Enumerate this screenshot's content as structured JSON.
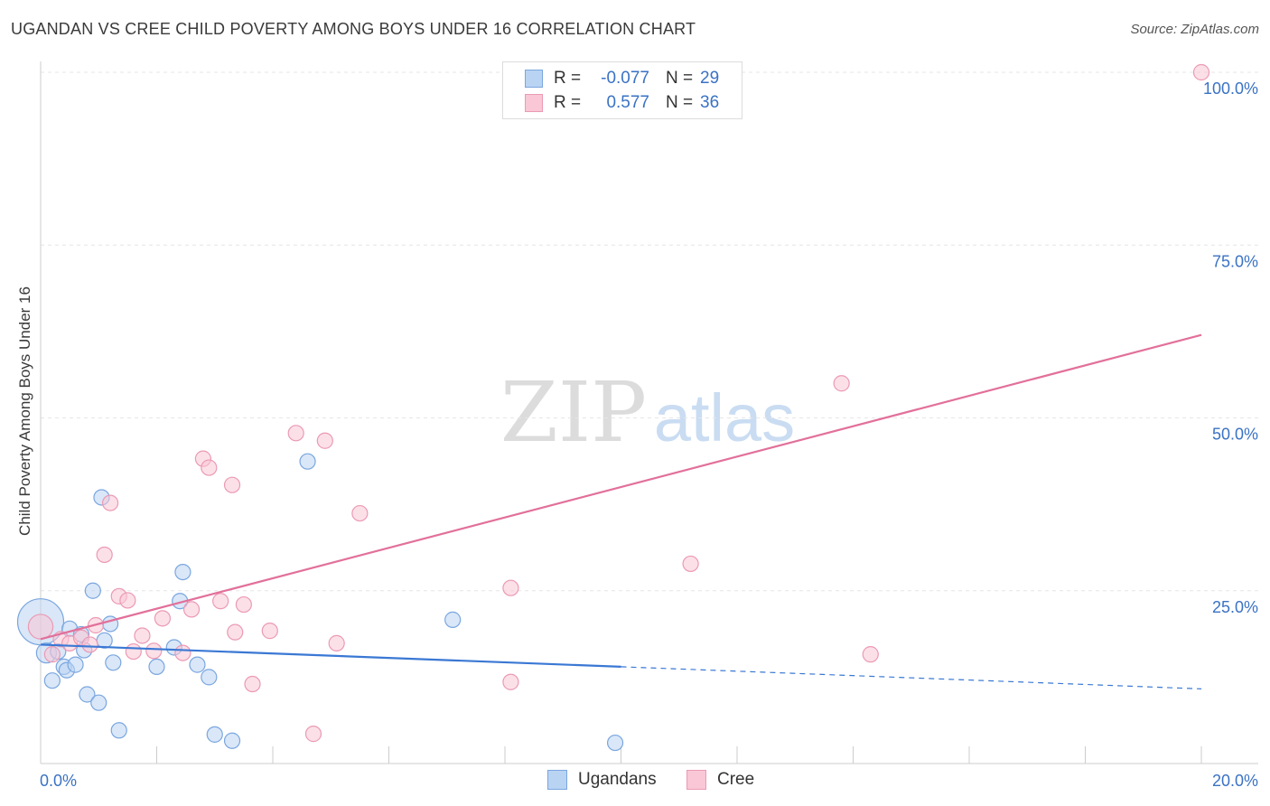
{
  "title": "UGANDAN VS CREE CHILD POVERTY AMONG BOYS UNDER 16 CORRELATION CHART",
  "source": "Source: ZipAtlas.com",
  "watermark": {
    "zip": "ZIP",
    "atlas": "atlas"
  },
  "legend": {
    "r_label": "R =",
    "n_label": "N =",
    "rows": [
      {
        "name": "Ugandans",
        "r": "-0.077",
        "n": "29",
        "fill": "#b9d3f3",
        "stroke": "#7aa6df"
      },
      {
        "name": "Cree",
        "r": "0.577",
        "n": "36",
        "fill": "#f9c7d6",
        "stroke": "#eb9ab4"
      }
    ]
  },
  "chart_data": {
    "type": "scatter",
    "title": "UGANDAN VS CREE CHILD POVERTY AMONG BOYS UNDER 16 CORRELATION CHART",
    "xlabel": "",
    "ylabel": "Child Poverty Among Boys Under 16",
    "xlim": [
      0,
      20
    ],
    "ylim": [
      0,
      100
    ],
    "x_tick_labels": [
      "0.0%",
      "20.0%"
    ],
    "y_tick_labels": [
      "25.0%",
      "50.0%",
      "75.0%",
      "100.0%"
    ],
    "y_ticks": [
      25,
      50,
      75,
      100
    ],
    "x_minor_ticks": [
      0,
      2,
      4,
      6,
      8,
      10,
      12,
      14,
      16,
      18,
      20
    ],
    "grid": true,
    "legend_position": "bottom-center",
    "colors": {
      "Ugandans": "#3a78d4",
      "Cree": "#e2709a",
      "tick_text": "#3a72c4",
      "grid": "#e6e6e6"
    },
    "series": [
      {
        "name": "Ugandans",
        "color": "#7aa6df",
        "fill": "#b9d3f3",
        "points": [
          [
            0.0,
            20.5,
            3.0
          ],
          [
            0.1,
            16.0,
            1.3
          ],
          [
            0.2,
            12.0,
            1.0
          ],
          [
            0.3,
            16.2,
            1.0
          ],
          [
            0.4,
            14.0,
            1.0
          ],
          [
            0.45,
            13.5,
            1.0
          ],
          [
            0.5,
            19.5,
            1.0
          ],
          [
            0.6,
            14.3,
            1.0
          ],
          [
            0.7,
            18.7,
            1.0
          ],
          [
            0.75,
            16.4,
            1.0
          ],
          [
            0.8,
            10.0,
            1.0
          ],
          [
            0.9,
            25.0,
            1.0
          ],
          [
            1.0,
            8.8,
            1.0
          ],
          [
            1.05,
            38.5,
            1.0
          ],
          [
            1.1,
            17.8,
            1.0
          ],
          [
            1.2,
            20.2,
            1.0
          ],
          [
            1.25,
            14.6,
            1.0
          ],
          [
            1.35,
            4.8,
            1.0
          ],
          [
            2.0,
            14.0,
            1.0
          ],
          [
            2.3,
            16.8,
            1.0
          ],
          [
            2.4,
            23.5,
            1.0
          ],
          [
            2.45,
            27.7,
            1.0
          ],
          [
            2.7,
            14.3,
            1.0
          ],
          [
            2.9,
            12.5,
            1.0
          ],
          [
            3.0,
            4.2,
            1.0
          ],
          [
            3.3,
            3.3,
            1.0
          ],
          [
            4.6,
            43.7,
            1.0
          ],
          [
            7.1,
            20.8,
            1.0
          ],
          [
            9.9,
            3.0,
            1.0
          ]
        ],
        "trend": {
          "x0": 0,
          "y0": 17.2,
          "x1": 10,
          "y1": 14.0,
          "dashed_to_x": 20,
          "dashed_to_y": 10.8
        }
      },
      {
        "name": "Cree",
        "color": "#eb9ab4",
        "fill": "#f9c7d6",
        "points": [
          [
            0.0,
            19.8,
            1.6
          ],
          [
            0.2,
            15.8,
            1.0
          ],
          [
            0.35,
            18.0,
            1.0
          ],
          [
            0.5,
            17.4,
            1.0
          ],
          [
            0.7,
            18.2,
            1.0
          ],
          [
            0.85,
            17.2,
            1.0
          ],
          [
            0.95,
            20.0,
            1.0
          ],
          [
            1.1,
            30.2,
            1.0
          ],
          [
            1.2,
            37.7,
            1.0
          ],
          [
            1.35,
            24.2,
            1.0
          ],
          [
            1.5,
            23.6,
            1.0
          ],
          [
            1.6,
            16.2,
            1.0
          ],
          [
            1.75,
            18.5,
            1.0
          ],
          [
            1.95,
            16.3,
            1.0
          ],
          [
            2.1,
            21.0,
            1.0
          ],
          [
            2.45,
            16.0,
            1.0
          ],
          [
            2.6,
            22.3,
            1.0
          ],
          [
            2.8,
            44.1,
            1.0
          ],
          [
            2.9,
            42.8,
            1.0
          ],
          [
            3.1,
            23.5,
            1.0
          ],
          [
            3.3,
            40.3,
            1.0
          ],
          [
            3.35,
            19.0,
            1.0
          ],
          [
            3.5,
            23.0,
            1.0
          ],
          [
            3.65,
            11.5,
            1.0
          ],
          [
            3.95,
            19.2,
            1.0
          ],
          [
            4.4,
            47.8,
            1.0
          ],
          [
            4.7,
            4.3,
            1.0
          ],
          [
            4.9,
            46.7,
            1.0
          ],
          [
            5.1,
            17.4,
            1.0
          ],
          [
            5.5,
            36.2,
            1.0
          ],
          [
            8.1,
            25.4,
            1.0
          ],
          [
            8.1,
            11.8,
            1.0
          ],
          [
            11.2,
            28.9,
            1.0
          ],
          [
            13.8,
            55.0,
            1.0
          ],
          [
            14.3,
            15.8,
            1.0
          ],
          [
            20.0,
            100.0,
            1.0
          ]
        ],
        "trend": {
          "x0": 0,
          "y0": 18.0,
          "x1": 20,
          "y1": 62.0
        }
      }
    ]
  }
}
